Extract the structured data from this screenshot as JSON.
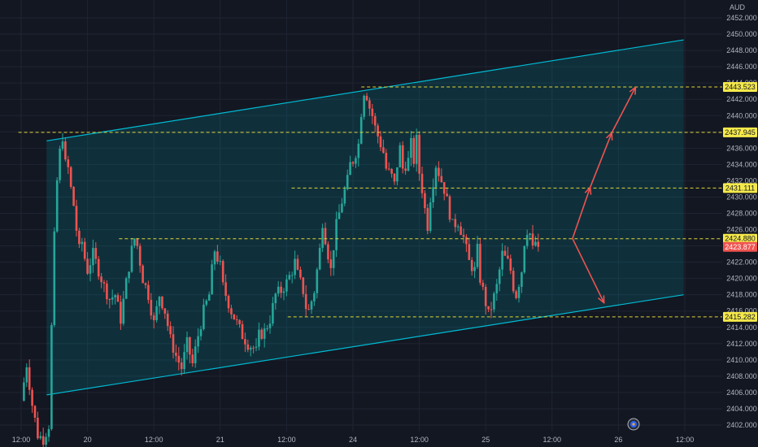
{
  "chart_data": {
    "type": "candlestick",
    "currency": "AUD",
    "y_ticks": [
      "2402.000",
      "2404.000",
      "2406.000",
      "2408.000",
      "2410.000",
      "2412.000",
      "2414.000",
      "2416.000",
      "2418.000",
      "2420.000",
      "2422.000",
      "2424.000",
      "2426.000",
      "2428.000",
      "2430.000",
      "2432.000",
      "2434.000",
      "2436.000",
      "2438.000",
      "2440.000",
      "2442.000",
      "2444.000",
      "2446.000",
      "2448.000",
      "2450.000",
      "2452.000"
    ],
    "ylim": [
      2401.2,
      2453.2
    ],
    "x_ticks": [
      {
        "label": "12:00",
        "t": 0
      },
      {
        "label": "20",
        "t": 12
      },
      {
        "label": "12:00",
        "t": 24
      },
      {
        "label": "21",
        "t": 36
      },
      {
        "label": "12:00",
        "t": 48
      },
      {
        "label": "24",
        "t": 60
      },
      {
        "label": "12:00",
        "t": 72
      },
      {
        "label": "25",
        "t": 84
      },
      {
        "label": "12:00",
        "t": 96
      },
      {
        "label": "26",
        "t": 108
      },
      {
        "label": "12:00",
        "t": 120
      }
    ],
    "price_levels": [
      {
        "label": "2443.523",
        "value": 2443.523,
        "t_start": 61.5
      },
      {
        "label": "2437.945",
        "value": 2437.945,
        "t_start": -0.5
      },
      {
        "label": "2431.111",
        "value": 2431.111,
        "t_start": 48.9
      },
      {
        "label": "2424.880",
        "value": 2424.88,
        "t_start": 17.7
      },
      {
        "label": "2415.282",
        "value": 2415.282,
        "t_start": 48.2
      }
    ],
    "current_price": {
      "label": "2423.877",
      "value": 2423.877
    },
    "channel": {
      "lower": {
        "t1": 4.6,
        "v1": 2405.7,
        "t2": 119.8,
        "v2": 2418.0
      },
      "upper": {
        "t1": 4.6,
        "v1": 2436.9,
        "t2": 119.8,
        "v2": 2449.3
      }
    },
    "projections": [
      {
        "points": [
          [
            99.7,
            2424.9
          ],
          [
            102.9,
            2431.2
          ]
        ]
      },
      {
        "points": [
          [
            102.9,
            2431.2
          ],
          [
            106.8,
            2437.9
          ]
        ]
      },
      {
        "points": [
          [
            106.8,
            2437.9
          ],
          [
            111.1,
            2443.5
          ]
        ]
      },
      {
        "points": [
          [
            99.7,
            2424.9
          ],
          [
            105.4,
            2417.0
          ]
        ]
      }
    ],
    "price_path": [
      [
        0.0,
        2405.0
      ],
      [
        1.0,
        2409.5
      ],
      [
        2.0,
        2404.5
      ],
      [
        3.0,
        2400.8
      ],
      [
        4.0,
        2400.3
      ],
      [
        5.0,
        2402.0
      ],
      [
        5.5,
        2414.0
      ],
      [
        6.0,
        2425.0
      ],
      [
        6.5,
        2432.0
      ],
      [
        7.0,
        2435.5
      ],
      [
        7.5,
        2437.5
      ],
      [
        8.0,
        2434.0
      ],
      [
        8.5,
        2433.5
      ],
      [
        9.0,
        2431.0
      ],
      [
        9.5,
        2429.0
      ],
      [
        10.0,
        2426.0
      ],
      [
        10.5,
        2423.5
      ],
      [
        11.0,
        2424.5
      ],
      [
        11.5,
        2422.5
      ],
      [
        12.0,
        2421.0
      ],
      [
        13.0,
        2423.0
      ],
      [
        14.0,
        2421.0
      ],
      [
        15.0,
        2419.0
      ],
      [
        16.0,
        2417.5
      ],
      [
        17.0,
        2418.0
      ],
      [
        18.0,
        2415.0
      ],
      [
        19.0,
        2419.5
      ],
      [
        20.0,
        2423.5
      ],
      [
        20.5,
        2424.9
      ],
      [
        21.0,
        2424.0
      ],
      [
        22.0,
        2420.0
      ],
      [
        23.0,
        2418.0
      ],
      [
        24.0,
        2414.5
      ],
      [
        25.0,
        2418.0
      ],
      [
        26.0,
        2416.0
      ],
      [
        27.0,
        2412.5
      ],
      [
        28.0,
        2410.5
      ],
      [
        29.0,
        2409.0
      ],
      [
        30.0,
        2412.0
      ],
      [
        31.0,
        2409.5
      ],
      [
        32.0,
        2413.0
      ],
      [
        33.0,
        2416.0
      ],
      [
        34.0,
        2418.0
      ],
      [
        34.5,
        2421.0
      ],
      [
        35.0,
        2423.5
      ],
      [
        36.0,
        2421.5
      ],
      [
        36.5,
        2419.0
      ],
      [
        37.0,
        2418.0
      ],
      [
        38.0,
        2416.0
      ],
      [
        39.0,
        2414.5
      ],
      [
        40.0,
        2413.0
      ],
      [
        41.0,
        2412.0
      ],
      [
        42.0,
        2411.5
      ],
      [
        42.5,
        2411.0
      ],
      [
        43.0,
        2413.0
      ],
      [
        44.0,
        2413.5
      ],
      [
        45.0,
        2415.0
      ],
      [
        46.0,
        2418.0
      ],
      [
        47.0,
        2418.5
      ],
      [
        48.0,
        2419.5
      ],
      [
        49.0,
        2421.0
      ],
      [
        49.5,
        2422.0
      ],
      [
        50.0,
        2420.5
      ],
      [
        51.0,
        2418.5
      ],
      [
        51.5,
        2416.5
      ],
      [
        52.0,
        2416.0
      ],
      [
        53.0,
        2418.5
      ],
      [
        53.5,
        2421.0
      ],
      [
        54.0,
        2423.5
      ],
      [
        54.5,
        2427.0
      ],
      [
        55.0,
        2425.0
      ],
      [
        56.0,
        2421.0
      ],
      [
        56.5,
        2424.0
      ],
      [
        57.0,
        2426.5
      ],
      [
        57.5,
        2428.0
      ],
      [
        58.0,
        2429.5
      ],
      [
        59.0,
        2432.0
      ],
      [
        59.5,
        2434.0
      ],
      [
        60.0,
        2434.5
      ],
      [
        61.0,
        2436.5
      ],
      [
        61.5,
        2440.5
      ],
      [
        62.0,
        2443.0
      ],
      [
        62.5,
        2442.5
      ],
      [
        63.0,
        2441.0
      ],
      [
        63.5,
        2440.0
      ],
      [
        64.0,
        2438.5
      ],
      [
        64.5,
        2437.5
      ],
      [
        65.0,
        2436.5
      ],
      [
        65.5,
        2435.5
      ],
      [
        66.0,
        2433.5
      ],
      [
        67.0,
        2432.5
      ],
      [
        67.5,
        2431.5
      ],
      [
        68.0,
        2434.0
      ],
      [
        68.5,
        2436.0
      ],
      [
        69.0,
        2433.5
      ],
      [
        70.0,
        2434.5
      ],
      [
        70.5,
        2436.5
      ],
      [
        71.0,
        2434.5
      ],
      [
        71.5,
        2437.0
      ],
      [
        72.0,
        2433.0
      ],
      [
        72.5,
        2431.0
      ],
      [
        73.0,
        2428.5
      ],
      [
        73.5,
        2426.5
      ],
      [
        74.0,
        2430.0
      ],
      [
        75.0,
        2434.0
      ],
      [
        75.5,
        2433.0
      ],
      [
        76.0,
        2432.0
      ],
      [
        76.5,
        2431.0
      ],
      [
        77.0,
        2429.5
      ],
      [
        77.5,
        2428.0
      ],
      [
        78.0,
        2426.5
      ],
      [
        79.0,
        2427.0
      ],
      [
        79.5,
        2426.0
      ],
      [
        80.0,
        2425.0
      ],
      [
        80.5,
        2423.5
      ],
      [
        81.0,
        2422.0
      ],
      [
        82.0,
        2421.0
      ],
      [
        82.5,
        2423.5
      ],
      [
        83.0,
        2420.0
      ],
      [
        83.5,
        2418.5
      ],
      [
        84.0,
        2417.0
      ],
      [
        84.5,
        2415.5
      ],
      [
        85.0,
        2416.5
      ],
      [
        86.0,
        2419.0
      ],
      [
        86.5,
        2421.0
      ],
      [
        87.0,
        2423.0
      ],
      [
        87.5,
        2422.5
      ],
      [
        88.0,
        2422.0
      ],
      [
        88.5,
        2421.0
      ],
      [
        89.0,
        2419.0
      ],
      [
        89.5,
        2418.0
      ],
      [
        90.0,
        2419.5
      ],
      [
        90.5,
        2421.0
      ],
      [
        91.0,
        2424.5
      ],
      [
        91.5,
        2426.0
      ],
      [
        92.0,
        2425.5
      ],
      [
        92.5,
        2423.5
      ],
      [
        93.0,
        2424.5
      ],
      [
        93.5,
        2423.877
      ]
    ]
  },
  "colors": {
    "background": "#131722",
    "grid": "#1f2433",
    "axis_text": "#b2b5be",
    "up": "#26a69a",
    "down": "#ef5350",
    "channel_line": "#00bcd4",
    "channel_fill": "rgba(0,150,160,0.20)",
    "level_line": "#e0d534",
    "level_badge": "#f5e94a",
    "level_badge_text": "#131722",
    "current_badge": "#ef5350",
    "projection": "#ef5350"
  }
}
